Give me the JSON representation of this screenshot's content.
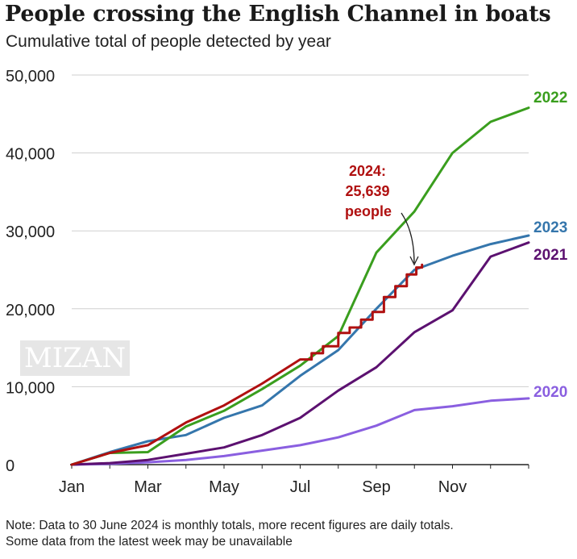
{
  "header": {
    "title": "People crossing the English Channel in boats",
    "subtitle": "Cumulative total of people detected by year"
  },
  "note": {
    "line1": "Note: Data to 30 June 2024 is monthly totals, more recent figures are daily totals.",
    "line2": "Some data from the latest week may be unavailable"
  },
  "watermark": "MIZAN",
  "annotation": {
    "line1": "2024:",
    "line2": "25,639",
    "line3": "people"
  },
  "colors": {
    "2020": "#8a5fe0",
    "2021": "#5c1170",
    "2022": "#3a9e1e",
    "2023": "#3576ac",
    "2024": "#b01010",
    "grid": "#cfcfcf",
    "axis": "#222222"
  },
  "chart_data": {
    "type": "line",
    "title": "People crossing the English Channel in boats",
    "subtitle": "Cumulative total of people detected by year",
    "xlabel": "",
    "ylabel": "",
    "ylim": [
      0,
      50000
    ],
    "xlim": [
      0,
      12
    ],
    "yticks": [
      0,
      10000,
      20000,
      30000,
      40000,
      50000
    ],
    "ytick_labels": [
      "0",
      "10,000",
      "20,000",
      "30,000",
      "40,000",
      "50,000"
    ],
    "xticks": [
      0,
      2,
      4,
      6,
      8,
      10
    ],
    "xtick_labels": [
      "Jan",
      "Mar",
      "May",
      "Jul",
      "Sep",
      "Nov"
    ],
    "grid": true,
    "series": [
      {
        "name": "2020",
        "x": [
          0,
          1,
          2,
          3,
          4,
          5,
          6,
          7,
          8,
          9,
          10,
          11,
          12
        ],
        "values": [
          0,
          100,
          300,
          600,
          1100,
          1800,
          2500,
          3500,
          5000,
          7000,
          7500,
          8200,
          8500
        ]
      },
      {
        "name": "2021",
        "x": [
          0,
          1,
          2,
          3,
          4,
          5,
          6,
          7,
          8,
          9,
          10,
          11,
          12
        ],
        "values": [
          0,
          200,
          600,
          1400,
          2200,
          3800,
          6000,
          9500,
          12500,
          17000,
          19800,
          26700,
          28500
        ]
      },
      {
        "name": "2022",
        "x": [
          0,
          1,
          2,
          3,
          4,
          5,
          6,
          7,
          8,
          9,
          10,
          11,
          12
        ],
        "values": [
          0,
          1500,
          1600,
          4900,
          6900,
          9700,
          12700,
          16500,
          27200,
          32500,
          40000,
          44000,
          45800
        ]
      },
      {
        "name": "2023",
        "x": [
          0,
          1,
          2,
          3,
          4,
          5,
          6,
          7,
          8,
          9,
          10,
          11,
          12
        ],
        "values": [
          0,
          1600,
          3000,
          3800,
          6000,
          7600,
          11400,
          14700,
          20000,
          25000,
          26800,
          28300,
          29400
        ]
      },
      {
        "name": "2024",
        "x": [
          0,
          1,
          2,
          3,
          4,
          5,
          6,
          6.3,
          6.6,
          7,
          7.3,
          7.6,
          7.9,
          8.2,
          8.5,
          8.8,
          9.05,
          9.2
        ],
        "values": [
          0,
          1500,
          2500,
          5400,
          7600,
          10400,
          13500,
          14300,
          15200,
          16900,
          17600,
          18600,
          19600,
          21500,
          22900,
          24400,
          25300,
          25639
        ]
      }
    ]
  }
}
